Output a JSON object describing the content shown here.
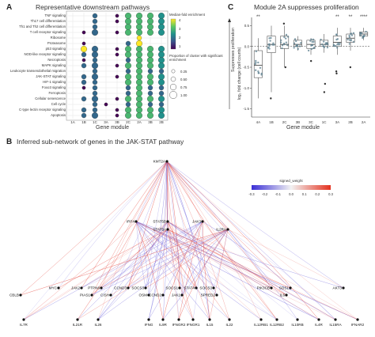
{
  "panel_a": {
    "letter": "A",
    "title": "Representative downstream pathways",
    "x_title": "Gene module",
    "pathways": [
      "TNF signaling",
      "Th17 cell differentiation",
      "Th1 and Th2 cell differentiation",
      "T cell receptor signaling",
      "Ribosome",
      "Proteasome",
      "p53 signaling",
      "NOD-like receptor signaling",
      "Necroptosis",
      "MAPK signaling",
      "Leukocyte transendothelial migration",
      "JAK-STAT signaling",
      "HIF-1 signaling",
      "Foxo3 signaling",
      "Ferroptosis",
      "Cellular senescence",
      "Cell cycle",
      "C-type lectin receptor signaling",
      "Apoptosis"
    ],
    "modules": [
      "1A",
      "1B",
      "1C",
      "3A",
      "3B",
      "2C",
      "2A",
      "3B",
      "2B"
    ],
    "legend_color_title": "Median-fold enrichment",
    "legend_color_ticks": [
      "4",
      "3",
      "2",
      "1"
    ],
    "legend_size_title": "Proportion of cluster with significant enrichment",
    "legend_size_ticks": [
      "0.25",
      "0.50",
      "0.75",
      "1.00"
    ]
  },
  "panel_c": {
    "letter": "C",
    "title": "Module 2A suppresses proliferation",
    "y_title_top": "Suppresses proliferation",
    "y_title_bottom": "log₂ fold change (cell counts)",
    "x_title": "Gene module",
    "y_ticks": [
      "0.5",
      "0.0",
      "-0.5",
      "-1.0",
      "-1.5"
    ],
    "significance": [
      "**",
      "",
      "",
      "",
      "",
      "",
      "**",
      "**",
      "****"
    ]
  },
  "panel_b": {
    "letter": "B",
    "title": "Inferred sub-network of genes in the JAK-STAT pathway",
    "legend_title": "signed_weight",
    "legend_ticks": [
      "-0.3",
      "-0.2",
      "-0.1",
      "0.0",
      "0.1",
      "0.2",
      "0.3"
    ],
    "nodes": {
      "top": "KMT2A",
      "mid": [
        "IRF4",
        "STAT5B",
        "STAT5A",
        "JAK3",
        "IL2RA"
      ],
      "row3": [
        "MYC",
        "JAK2",
        "PTPN6",
        "CCND3",
        "SOCS3",
        "SOCS1",
        "STAT4",
        "SOCS3",
        "PIK3CB",
        "SOS1",
        "AKT3"
      ],
      "row3b": [
        "CBLB",
        "PIAS1",
        "CISH",
        "OSM",
        "CCND2",
        "JAK1",
        "SPRED2",
        "IL6"
      ],
      "bottom": [
        "IL7R",
        "IL21R",
        "IL26",
        "IFNG",
        "IL9R",
        "IFNGR2",
        "IFNGR1",
        "IL15",
        "IL22",
        "IL12RB1",
        "IL12RB2",
        "IL10RB",
        "IL4R",
        "IL15RA",
        "IFNAR2"
      ]
    }
  },
  "chart_data": [
    {
      "type": "scatter",
      "title": "Representative downstream pathways",
      "xlabel": "Gene module",
      "ylabel": "",
      "categories": [
        "1A",
        "1B",
        "1C",
        "3A",
        "3B",
        "2C",
        "2A",
        "3B",
        "2B"
      ],
      "rows": [
        "TNF signaling",
        "Th17 cell differentiation",
        "Th1 and Th2 cell differentiation",
        "T cell receptor signaling",
        "Ribosome",
        "Proteasome",
        "p53 signaling",
        "NOD-like receptor signaling",
        "Necroptosis",
        "MAPK signaling",
        "Leukocyte transendothelial migration",
        "JAK-STAT signaling",
        "HIF-1 signaling",
        "Foxo3 signaling",
        "Ferroptosis",
        "Cellular senescence",
        "Cell cycle",
        "C-type lectin receptor signaling",
        "Apoptosis"
      ],
      "proportion": [
        [
          0,
          0,
          0.5,
          0,
          0.25,
          0.75,
          0.75,
          0.75,
          0.75
        ],
        [
          0,
          0,
          0.5,
          0,
          0.25,
          0.75,
          0.75,
          0.75,
          0.75
        ],
        [
          0,
          0,
          0.5,
          0,
          0,
          0.75,
          0.75,
          0.75,
          0.75
        ],
        [
          0,
          0.25,
          0.75,
          0,
          0.25,
          0.75,
          0.75,
          0.75,
          0.75
        ],
        [
          0,
          0,
          0,
          0,
          0,
          0,
          0.5,
          0,
          0
        ],
        [
          0,
          0.25,
          0,
          0,
          0,
          0.5,
          0.75,
          0,
          0
        ],
        [
          0,
          0.75,
          0.75,
          0,
          0.25,
          0.75,
          0.75,
          0.75,
          0.75
        ],
        [
          0,
          0.5,
          0.75,
          0,
          0.25,
          0.75,
          0.75,
          0.75,
          0.75
        ],
        [
          0,
          0.25,
          0.5,
          0,
          0,
          0.5,
          0.75,
          0.75,
          0.75
        ],
        [
          0,
          0.5,
          0.75,
          0,
          0.25,
          0.75,
          0.75,
          0.75,
          0.75
        ],
        [
          0,
          0,
          0.5,
          0,
          0,
          0.5,
          0.75,
          0.5,
          0.5
        ],
        [
          0,
          0.5,
          0.75,
          0,
          0.25,
          0.75,
          0.75,
          0.75,
          0.75
        ],
        [
          0,
          0.5,
          0.5,
          0,
          0,
          0.75,
          0.75,
          0.75,
          0.75
        ],
        [
          0,
          0.25,
          0.5,
          0,
          0,
          0.5,
          0.75,
          0.5,
          0.5
        ],
        [
          0,
          0,
          0.5,
          0,
          0,
          0.5,
          0.75,
          0.5,
          0.5
        ],
        [
          0,
          0.5,
          0.75,
          0,
          0.25,
          0.75,
          0.75,
          0.75,
          0.75
        ],
        [
          0,
          0,
          0.5,
          0.25,
          0,
          0.5,
          0.75,
          0.5,
          0.5
        ],
        [
          0,
          0.5,
          0.5,
          0,
          0.25,
          0.75,
          0.75,
          0.75,
          0.75
        ],
        [
          0,
          0.5,
          0.75,
          0,
          0.25,
          0.75,
          0.75,
          0.75,
          0.75
        ]
      ],
      "enrichment": [
        [
          0,
          0,
          2,
          0,
          1,
          3,
          3,
          3,
          2.5
        ],
        [
          0,
          0,
          2,
          0,
          1,
          3,
          3,
          3,
          2.5
        ],
        [
          0,
          0,
          2,
          0,
          0,
          3,
          3,
          3,
          2.5
        ],
        [
          0,
          1,
          2,
          0,
          1,
          3,
          3,
          3,
          2.5
        ],
        [
          0,
          0,
          0,
          0,
          0,
          0,
          4,
          0,
          0
        ],
        [
          0,
          1,
          0,
          0,
          0,
          2,
          4,
          0,
          0
        ],
        [
          0,
          4,
          2,
          0,
          1,
          3,
          3,
          3,
          2.5
        ],
        [
          0,
          2,
          2,
          0,
          1,
          3,
          3,
          3,
          2.5
        ],
        [
          0,
          1,
          2,
          0,
          0,
          2,
          3,
          3,
          2.5
        ],
        [
          0,
          2,
          2,
          0,
          1,
          3,
          3,
          3,
          2.5
        ],
        [
          0,
          0,
          2,
          0,
          0,
          2,
          3,
          2,
          2
        ],
        [
          0,
          2,
          2,
          0,
          1,
          3,
          3,
          3,
          2.5
        ],
        [
          0,
          2,
          2,
          0,
          0,
          3,
          3,
          3,
          2.5
        ],
        [
          0,
          1,
          2,
          0,
          0,
          2,
          3,
          2,
          2
        ],
        [
          0,
          0,
          2,
          0,
          0,
          2,
          3,
          2,
          2
        ],
        [
          0,
          2,
          2,
          0,
          1,
          3,
          3,
          3,
          2.5
        ],
        [
          0,
          0,
          2,
          1,
          0,
          2,
          3,
          2,
          2
        ],
        [
          0,
          2,
          2,
          0,
          1,
          3,
          3,
          3,
          2.5
        ],
        [
          0,
          2,
          2,
          0,
          1,
          3,
          3,
          3,
          2.5
        ]
      ],
      "color_range": [
        1,
        4
      ]
    },
    {
      "type": "box",
      "title": "Module 2A suppresses proliferation",
      "xlabel": "Gene module",
      "ylabel": "log₂ fold change (cell counts)",
      "ylim": [
        -1.7,
        0.7
      ],
      "categories": [
        "4A",
        "1B",
        "2C",
        "3B",
        "3C",
        "1C",
        "3A",
        "2B",
        "2A"
      ],
      "median": [
        -0.45,
        0.05,
        0.05,
        0.05,
        0.05,
        0.05,
        0.1,
        0.2,
        0.3
      ],
      "q1": [
        -0.75,
        -0.15,
        -0.05,
        0.0,
        -0.05,
        0.0,
        0.0,
        0.1,
        0.25
      ],
      "q3": [
        -0.1,
        0.25,
        0.25,
        0.15,
        0.15,
        0.15,
        0.25,
        0.3,
        0.35
      ],
      "whisker_low": [
        -1.25,
        -1.1,
        -0.5,
        -0.1,
        -0.2,
        -0.15,
        -0.2,
        -0.1,
        0.15
      ],
      "whisker_high": [
        0.2,
        0.5,
        0.5,
        0.25,
        0.2,
        0.3,
        0.45,
        0.45,
        0.45
      ],
      "outliers": [
        [],
        [
          -1.25
        ],
        [
          -0.5,
          0.55
        ],
        [],
        [
          -0.35
        ],
        [
          -0.9,
          -1.1
        ],
        [
          -0.6,
          -0.65
        ],
        [
          -0.5
        ],
        []
      ],
      "reference_line": 0.0
    }
  ]
}
